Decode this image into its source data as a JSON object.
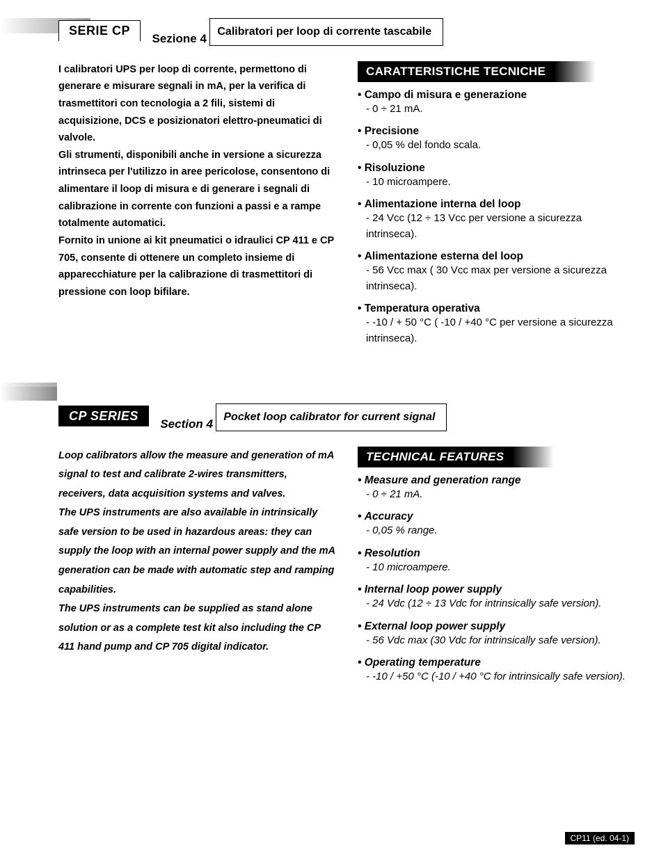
{
  "colors": {
    "black": "#000000",
    "white": "#ffffff",
    "grad_start": "#ffffff",
    "grad_end": "#999999"
  },
  "italian": {
    "series": "SERIE CP",
    "section": "Sezione 4",
    "subtitle": "Calibratori per loop di corrente tascabile",
    "body": "I calibratori UPS per loop di corrente, permettono di generare e misurare segnali in mA, per la verifica di trasmettitori con tecnologia a 2 fili, sistemi di acquisizione, DCS e posizionatori elettro-pneumatici di valvole.\nGli strumenti, disponibili anche in versione a sicurezza intrinseca per l'utilizzo in aree pericolose, consentono di alimentare il loop di misura e di generare i segnali di calibrazione in corrente con funzioni a passi e a rampe totalmente automatici.\nFornito in unione ai kit pneumatici o idraulici CP 411 e CP 705, consente di ottenere un completo insieme di apparecchiature per la calibrazione di trasmettitori di pressione con loop bifilare.",
    "features_title": "CARATTERISTICHE TECNICHE",
    "features": [
      {
        "head": "Campo di misura e generazione",
        "sub": "- 0 ÷ 21 mA."
      },
      {
        "head": "Precisione",
        "sub": "- 0,05 % del fondo scala."
      },
      {
        "head": "Risoluzione",
        "sub": "- 10 microampere."
      },
      {
        "head": "Alimentazione interna del loop",
        "sub": "- 24 Vcc (12 ÷ 13 Vcc per versione a sicurezza intrinseca)."
      },
      {
        "head": "Alimentazione esterna del loop",
        "sub": "- 56 Vcc max ( 30  Vcc max per versione a sicurezza intrinseca)."
      },
      {
        "head": "Temperatura operativa",
        "sub": "- -10 / + 50 °C ( -10 / +40 °C per versione a sicurezza intrinseca)."
      }
    ]
  },
  "english": {
    "series": "CP SERIES",
    "section": "Section 4",
    "subtitle": "Pocket loop calibrator for current signal",
    "body": "Loop calibrators allow the measure and generation of mA signal to test and calibrate 2-wires transmitters, receivers, data acquisition systems and valves.\nThe UPS instruments are also available in intrinsically safe version to be used in hazardous areas: they can supply the loop with an internal power supply and the mA generation can be made with automatic step and ramping capabilities.\nThe UPS instruments can be supplied as stand alone solution or as a complete test kit also including the CP 411 hand pump and CP 705 digital indicator.",
    "features_title": "TECHNICAL FEATURES",
    "features": [
      {
        "head": "Measure and generation range",
        "sub": "- 0 ÷ 21 mA."
      },
      {
        "head": "Accuracy",
        "sub": "- 0,05 % range."
      },
      {
        "head": "Resolution",
        "sub": "- 10 microampere."
      },
      {
        "head": "Internal loop power supply",
        "sub": "- 24 Vdc (12 ÷ 13 Vdc for intrinsically safe version)."
      },
      {
        "head": "External loop power supply",
        "sub": "- 56 Vdc max (30 Vdc for intrinsically safe version)."
      },
      {
        "head": "Operating temperature",
        "sub": "- -10 / +50 °C (-10 / +40 °C for intrinsically safe version)."
      }
    ]
  },
  "footer": "CP11 (ed. 04-1)"
}
